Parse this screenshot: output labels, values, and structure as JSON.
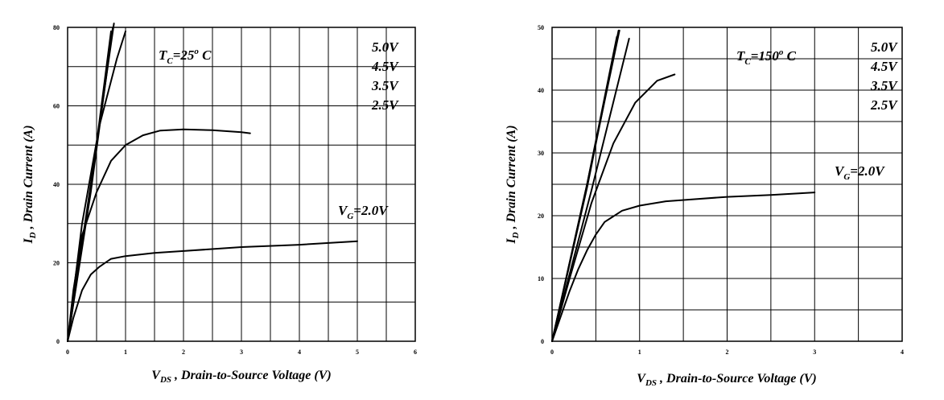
{
  "chart_data": [
    {
      "type": "line",
      "panel": "left",
      "xlabel": "V DS , Drain-to-Source Voltage (V)",
      "xlabel_parts": {
        "main": "V",
        "sub": "DS",
        "rest": " , Drain-to-Source Voltage (V)"
      },
      "ylabel": "I D , Drain Current (A)",
      "ylabel_parts": {
        "main": "I",
        "sub": "D",
        "rest": " , Drain Current (A)"
      },
      "xlim": [
        0,
        6
      ],
      "ylim": [
        0,
        80
      ],
      "x_ticks": [
        "0",
        "1",
        "2",
        "3",
        "4",
        "5",
        "6"
      ],
      "y_ticks": [
        "0",
        "20",
        "40",
        "60",
        "80"
      ],
      "x_grid": 12,
      "y_grid": 8,
      "grid": true,
      "condition": {
        "main": "T",
        "sub": "C",
        "mid": "=25",
        "sup": "o",
        "end": " C"
      },
      "legend_labels": [
        "5.0V",
        "4.5V",
        "3.5V",
        "2.5V"
      ],
      "vg_label": {
        "main": "V",
        "sub": "G",
        "rest": "=2.0V"
      },
      "series": [
        {
          "x": [
            0,
            0.4,
            0.8
          ],
          "y": [
            0,
            40,
            81
          ]
        },
        {
          "x": [
            0,
            0.4,
            0.78
          ],
          "y": [
            0,
            38,
            80
          ]
        },
        {
          "x": [
            0,
            0.4,
            0.75
          ],
          "y": [
            0,
            39,
            79
          ]
        },
        {
          "x": [
            0,
            0.25,
            0.55,
            0.85,
            1.0
          ],
          "y": [
            0,
            30,
            55,
            72,
            79
          ]
        },
        {
          "x": [
            0,
            0.1,
            0.25,
            0.5,
            0.75,
            1.0,
            1.3,
            1.6,
            2.0,
            2.5,
            3.0,
            3.15
          ],
          "y": [
            0,
            13,
            27,
            38,
            46,
            50,
            52.5,
            53.7,
            54.0,
            53.8,
            53.3,
            53.0
          ]
        },
        {
          "x": [
            0,
            0.1,
            0.25,
            0.4,
            0.55,
            0.75,
            1.0,
            1.5,
            2.0,
            3.0,
            4.0,
            5.0
          ],
          "y": [
            0,
            6,
            13,
            17,
            19,
            21,
            21.7,
            22.5,
            23.0,
            24.0,
            24.6,
            25.5
          ]
        }
      ]
    },
    {
      "type": "line",
      "panel": "right",
      "xlabel": "V DS , Drain-to-Source Voltage (V)",
      "xlabel_parts": {
        "main": "V",
        "sub": "DS",
        "rest": " , Drain-to-Source Voltage (V)"
      },
      "ylabel": "I D , Drain Current (A)",
      "ylabel_parts": {
        "main": "I",
        "sub": "D",
        "rest": " , Drain Current (A)"
      },
      "xlim": [
        0,
        4
      ],
      "ylim": [
        0,
        50
      ],
      "x_ticks": [
        "0",
        "1",
        "2",
        "3",
        "4"
      ],
      "y_ticks": [
        "0",
        "10",
        "20",
        "30",
        "40",
        "50"
      ],
      "x_grid": 8,
      "y_grid": 10,
      "grid": true,
      "condition": {
        "main": "T",
        "sub": "C",
        "mid": "=150",
        "sup": "o",
        "end": " C"
      },
      "legend_labels": [
        "5.0V",
        "4.5V",
        "3.5V",
        "2.5V"
      ],
      "vg_label": {
        "main": "V",
        "sub": "G",
        "rest": "=2.0V"
      },
      "series": [
        {
          "x": [
            0,
            0.4,
            0.77
          ],
          "y": [
            0,
            25,
            49.5
          ]
        },
        {
          "x": [
            0,
            0.4,
            0.76
          ],
          "y": [
            0,
            24.5,
            49.5
          ]
        },
        {
          "x": [
            0,
            0.4,
            0.74
          ],
          "y": [
            0,
            25,
            48.5
          ]
        },
        {
          "x": [
            0,
            0.45,
            0.88
          ],
          "y": [
            0,
            24,
            48.2
          ]
        },
        {
          "x": [
            0,
            0.2,
            0.45,
            0.7,
            0.95,
            1.2,
            1.4
          ],
          "y": [
            0,
            10,
            22,
            31.5,
            38,
            41.5,
            42.5
          ]
        },
        {
          "x": [
            0,
            0.1,
            0.2,
            0.3,
            0.4,
            0.5,
            0.6,
            0.8,
            1.0,
            1.3,
            1.6,
            2.0,
            2.5,
            3.0
          ],
          "y": [
            0,
            4,
            8,
            11.5,
            14.5,
            17,
            19,
            20.8,
            21.6,
            22.3,
            22.6,
            23.0,
            23.3,
            23.7
          ]
        }
      ]
    }
  ]
}
